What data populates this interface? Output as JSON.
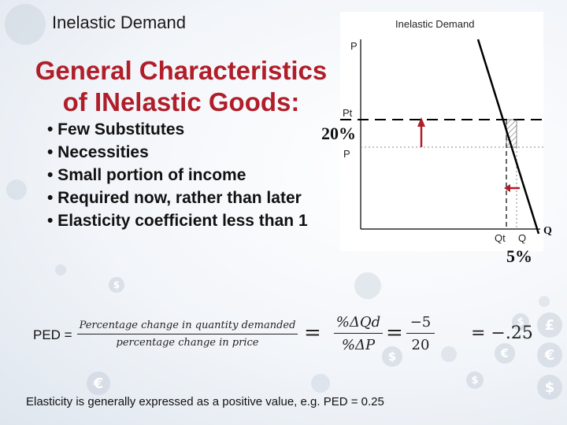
{
  "slide": {
    "header_title": "Inelastic Demand",
    "heading_line1": "General Characteristics",
    "heading_line2": "of INelastic Goods:",
    "bullets": [
      "• Few Substitutes",
      "• Necessities",
      "• Small portion of income",
      "• Required now, rather than later",
      "• Elasticity coefficient less than 1"
    ],
    "pct_price": "20%",
    "pct_quantity": "5%",
    "axis_q_outer": "Q",
    "footer_note": "Elasticity is generally expressed as a positive value, e.g. PED = 0.25"
  },
  "chart": {
    "title": "Inelastic Demand",
    "y_axis_label": "P",
    "price_high_label": "Pt",
    "price_low_label": "P",
    "qty_low_label": "Qt",
    "qty_high_label": "Q",
    "price_change_pct": 20,
    "quantity_change_pct": 5,
    "colors": {
      "arrow": "#b01e2a",
      "demand_line": "#000000"
    }
  },
  "formula": {
    "label": "PED =",
    "words_numerator": "Percentage change in quantity demanded",
    "words_denominator": "percentage change in price",
    "sym_numerator": "%ΔQd",
    "sym_denominator": "%ΔP",
    "num_numerator": "−5",
    "num_denominator": "20",
    "result": "= −.25",
    "equals": "="
  },
  "background": {
    "currency_icons": [
      "€",
      "$",
      "£",
      "€",
      "$",
      "€",
      "$",
      "$",
      "$"
    ]
  }
}
